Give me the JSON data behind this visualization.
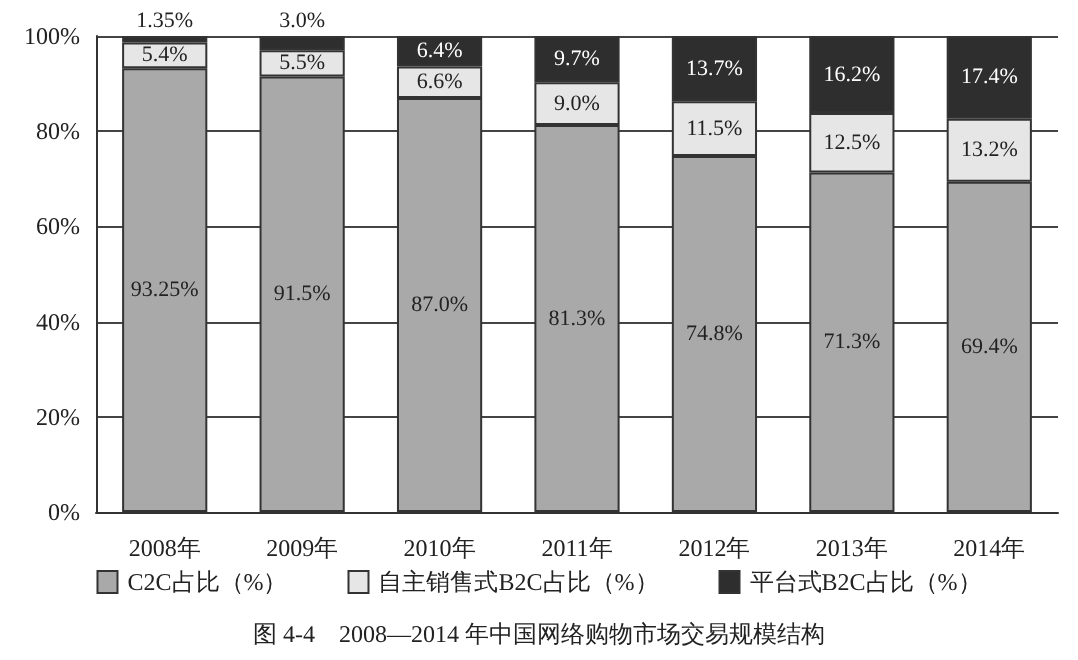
{
  "chart_data": {
    "type": "bar",
    "stacked": true,
    "title": "图 4-4　2008—2014 年中国网络购物市场交易规模结构",
    "categories": [
      "2008年",
      "2009年",
      "2010年",
      "2011年",
      "2012年",
      "2013年",
      "2014年"
    ],
    "series": [
      {
        "name": "C2C占比（%）",
        "color": "#a9a9a9",
        "values": [
          93.25,
          91.5,
          87.0,
          81.3,
          74.8,
          71.3,
          69.4
        ],
        "value_labels": [
          "93.25%",
          "91.5%",
          "87.0%",
          "81.3%",
          "74.8%",
          "71.3%",
          "69.4%"
        ]
      },
      {
        "name": "自主销售式B2C占比（%）",
        "color": "#e6e6e6",
        "values": [
          5.4,
          5.5,
          6.6,
          9.0,
          11.5,
          12.5,
          13.2
        ],
        "value_labels": [
          "5.4%",
          "5.5%",
          "6.6%",
          "9.0%",
          "11.5%",
          "12.5%",
          "13.2%"
        ]
      },
      {
        "name": "平台式B2C占比（%）",
        "color": "#2e2e2e",
        "values": [
          1.35,
          3.0,
          6.4,
          9.7,
          13.7,
          16.2,
          17.4
        ],
        "value_labels": [
          "1.35%",
          "3.0%",
          "6.4%",
          "9.7%",
          "13.7%",
          "16.2%",
          "17.4%"
        ]
      }
    ],
    "ylim": [
      0,
      100
    ],
    "yticks": [
      {
        "value": 0,
        "label": "0%"
      },
      {
        "value": 20,
        "label": "20%"
      },
      {
        "value": 40,
        "label": "40%"
      },
      {
        "value": 60,
        "label": "60%"
      },
      {
        "value": 80,
        "label": "80%"
      },
      {
        "value": 100,
        "label": "100%"
      }
    ],
    "grid": "y",
    "legend": "bottom"
  }
}
